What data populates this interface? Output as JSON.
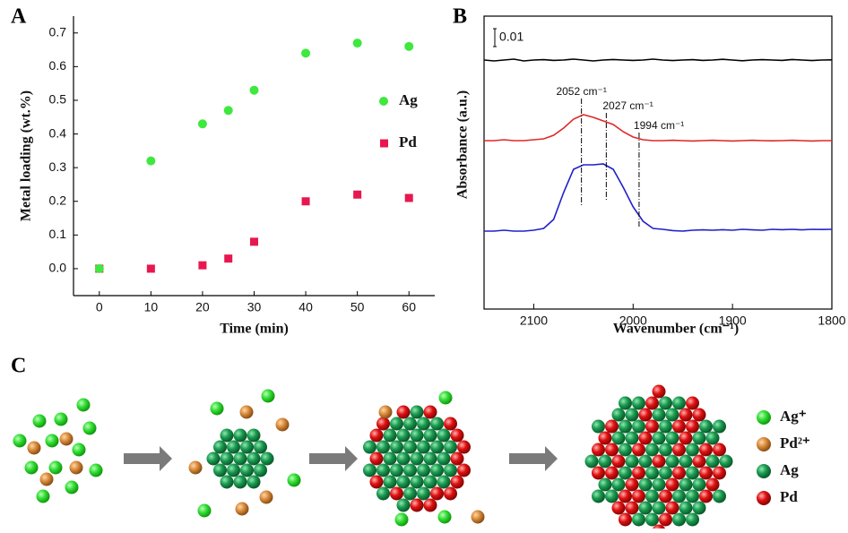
{
  "chart_data": [
    {
      "type": "scatter",
      "panel_label": "A",
      "x_label": "Time (min)",
      "y_label": "Metal loading (wt.%)",
      "x": [
        0,
        10,
        20,
        25,
        30,
        40,
        50,
        60
      ],
      "series": [
        {
          "name": "Pd",
          "color": "#e8174f",
          "marker": "square",
          "values": [
            0,
            0,
            0.01,
            0.03,
            0.08,
            0.2,
            0.22,
            0.21
          ]
        },
        {
          "name": "Ag",
          "color": "#3ee83e",
          "marker": "circle",
          "values": [
            0,
            0.32,
            0.43,
            0.47,
            0.53,
            0.64,
            0.67,
            0.66
          ]
        }
      ],
      "xlim": [
        -5,
        65
      ],
      "ylim": [
        -0.08,
        0.75
      ],
      "xticks": [
        0,
        10,
        20,
        30,
        40,
        50,
        60
      ],
      "yticks": [
        {
          "value": 0,
          "label": "0.0"
        },
        0.1,
        0.2,
        0.3,
        0.4,
        0.5,
        0.6,
        0.7
      ]
    },
    {
      "type": "line",
      "panel_label": "B",
      "x_label": "Wavenumber (cm⁻¹)",
      "y_label": "Absorbance (a.u.)",
      "scale_bar": 0.01,
      "x": [
        2150,
        2140,
        2130,
        2120,
        2110,
        2100,
        2090,
        2080,
        2070,
        2060,
        2050,
        2040,
        2030,
        2020,
        2010,
        2000,
        1990,
        1980,
        1970,
        1960,
        1950,
        1940,
        1930,
        1920,
        1910,
        1900,
        1890,
        1880,
        1870,
        1860,
        1850,
        1840,
        1830,
        1820,
        1810,
        1800
      ],
      "xlim": [
        2150,
        1800
      ],
      "ylim": [
        0,
        0.1635
      ],
      "xticks": [
        2100,
        2000,
        1900,
        1800
      ],
      "series": [
        {
          "color": "#000000",
          "values": [
            0.139,
            0.1385,
            0.139,
            0.1395,
            0.1385,
            0.139,
            0.1392,
            0.1388,
            0.139,
            0.1395,
            0.139,
            0.1385,
            0.139,
            0.1393,
            0.139,
            0.1388,
            0.139,
            0.1395,
            0.139,
            0.1387,
            0.139,
            0.1392,
            0.1388,
            0.139,
            0.1394,
            0.139,
            0.1386,
            0.139,
            0.1392,
            0.139,
            0.1388,
            0.1393,
            0.139,
            0.1387,
            0.139,
            0.1391
          ]
        },
        {
          "color": "#e02828",
          "values": [
            0.094,
            0.094,
            0.0945,
            0.094,
            0.094,
            0.0945,
            0.095,
            0.097,
            0.101,
            0.106,
            0.1085,
            0.107,
            0.105,
            0.103,
            0.099,
            0.096,
            0.0945,
            0.094,
            0.094,
            0.0942,
            0.094,
            0.0938,
            0.094,
            0.0942,
            0.094,
            0.0938,
            0.094,
            0.0942,
            0.094,
            0.0939,
            0.094,
            0.0942,
            0.094,
            0.0938,
            0.094,
            0.094
          ]
        },
        {
          "color": "#2020c8",
          "values": [
            0.0435,
            0.0435,
            0.044,
            0.0435,
            0.0435,
            0.044,
            0.045,
            0.05,
            0.065,
            0.078,
            0.0805,
            0.0805,
            0.081,
            0.078,
            0.068,
            0.057,
            0.049,
            0.045,
            0.0445,
            0.0438,
            0.0435,
            0.044,
            0.0442,
            0.044,
            0.0443,
            0.044,
            0.0445,
            0.0442,
            0.044,
            0.0445,
            0.0443,
            0.0445,
            0.0442,
            0.0445,
            0.0444,
            0.0445
          ]
        }
      ],
      "annotations": [
        {
          "x": 2052,
          "label": "2052 cm⁻¹"
        },
        {
          "x": 2027,
          "label": "2027 cm⁻¹"
        },
        {
          "x": 1994,
          "label": "1994 cm⁻¹"
        }
      ]
    }
  ],
  "diagram": {
    "panel_label": "C",
    "legend": [
      "Ag⁺",
      "Pd²⁺",
      "Ag",
      "Pd"
    ]
  }
}
